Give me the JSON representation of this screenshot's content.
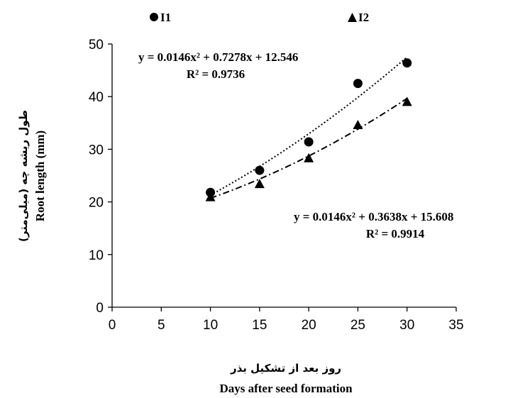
{
  "chart_data": {
    "type": "scatter",
    "xlabel_fa": "روز بعد از تشکیل بذر",
    "xlabel": "Days after seed formation",
    "ylabel_fa": "طول ریشه چه (میلی‌متر)",
    "ylabel": "Root length (mm)",
    "xlim": [
      0,
      35
    ],
    "ylim": [
      0,
      50
    ],
    "x_ticks": [
      "0",
      "5",
      "10",
      "15",
      "20",
      "25",
      "30",
      "35"
    ],
    "y_ticks": [
      "0",
      "10",
      "20",
      "30",
      "40",
      "50"
    ],
    "grid": false,
    "legend_position": "top",
    "series": [
      {
        "name": "I1",
        "marker": "circle",
        "color": "#000000",
        "x": [
          10,
          15,
          20,
          25,
          30
        ],
        "y": [
          21.8,
          26.0,
          31.4,
          42.5,
          46.4
        ],
        "trendline": {
          "style": "dotted",
          "coefficients": [
            0.0146,
            0.7278,
            12.546
          ],
          "equation": "y = 0.0146x² + 0.7278x + 12.546",
          "r2": "R² = 0.9736"
        }
      },
      {
        "name": "I2",
        "marker": "triangle",
        "color": "#000000",
        "x": [
          10,
          15,
          20,
          25,
          30
        ],
        "y": [
          21.0,
          23.5,
          28.4,
          34.7,
          39.1
        ],
        "trendline": {
          "style": "dash-dot",
          "coefficients": [
            0.0146,
            0.3638,
            15.608
          ],
          "equation": "y = 0.0146x² + 0.3638x + 15.608",
          "r2": "R² = 0.9914"
        }
      }
    ]
  }
}
